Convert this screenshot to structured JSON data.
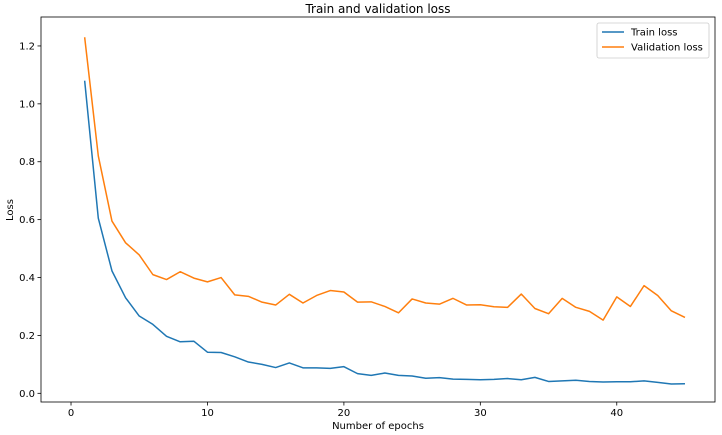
{
  "chart_data": {
    "type": "line",
    "title": "Train and validation loss",
    "xlabel": "Number of epochs",
    "ylabel": "Loss",
    "xlim": [
      -2.2,
      47.2
    ],
    "ylim": [
      -0.03,
      1.3
    ],
    "xticks": [
      0,
      10,
      20,
      30,
      40
    ],
    "yticks": [
      0.0,
      0.2,
      0.4,
      0.6,
      0.8,
      1.0,
      1.2
    ],
    "xtick_labels": [
      "0",
      "10",
      "20",
      "30",
      "40"
    ],
    "ytick_labels": [
      "0.0",
      "0.2",
      "0.4",
      "0.6",
      "0.8",
      "1.0",
      "1.2"
    ],
    "grid": false,
    "legend_position": "top-right",
    "x": [
      1,
      2,
      3,
      4,
      5,
      6,
      7,
      8,
      9,
      10,
      11,
      12,
      13,
      14,
      15,
      16,
      17,
      18,
      19,
      20,
      21,
      22,
      23,
      24,
      25,
      26,
      27,
      28,
      29,
      30,
      31,
      32,
      33,
      34,
      35,
      36,
      37,
      38,
      39,
      40,
      41,
      42,
      43,
      44,
      45
    ],
    "series": [
      {
        "name": "Train loss",
        "color": "#1f77b4",
        "values": [
          1.08,
          0.605,
          0.423,
          0.33,
          0.267,
          0.238,
          0.197,
          0.178,
          0.18,
          0.142,
          0.141,
          0.126,
          0.108,
          0.1,
          0.089,
          0.105,
          0.088,
          0.088,
          0.086,
          0.092,
          0.068,
          0.062,
          0.07,
          0.062,
          0.06,
          0.052,
          0.054,
          0.049,
          0.048,
          0.047,
          0.048,
          0.051,
          0.047,
          0.055,
          0.041,
          0.043,
          0.045,
          0.041,
          0.039,
          0.04,
          0.04,
          0.043,
          0.038,
          0.032,
          0.033
        ]
      },
      {
        "name": "Validation loss",
        "color": "#ff7f0e",
        "values": [
          1.23,
          0.82,
          0.595,
          0.52,
          0.478,
          0.41,
          0.393,
          0.42,
          0.398,
          0.385,
          0.4,
          0.34,
          0.335,
          0.315,
          0.305,
          0.342,
          0.312,
          0.338,
          0.355,
          0.35,
          0.315,
          0.316,
          0.3,
          0.278,
          0.326,
          0.312,
          0.308,
          0.328,
          0.305,
          0.306,
          0.299,
          0.297,
          0.343,
          0.293,
          0.275,
          0.328,
          0.297,
          0.283,
          0.253,
          0.333,
          0.3,
          0.372,
          0.338,
          0.285,
          0.262
        ]
      }
    ]
  }
}
